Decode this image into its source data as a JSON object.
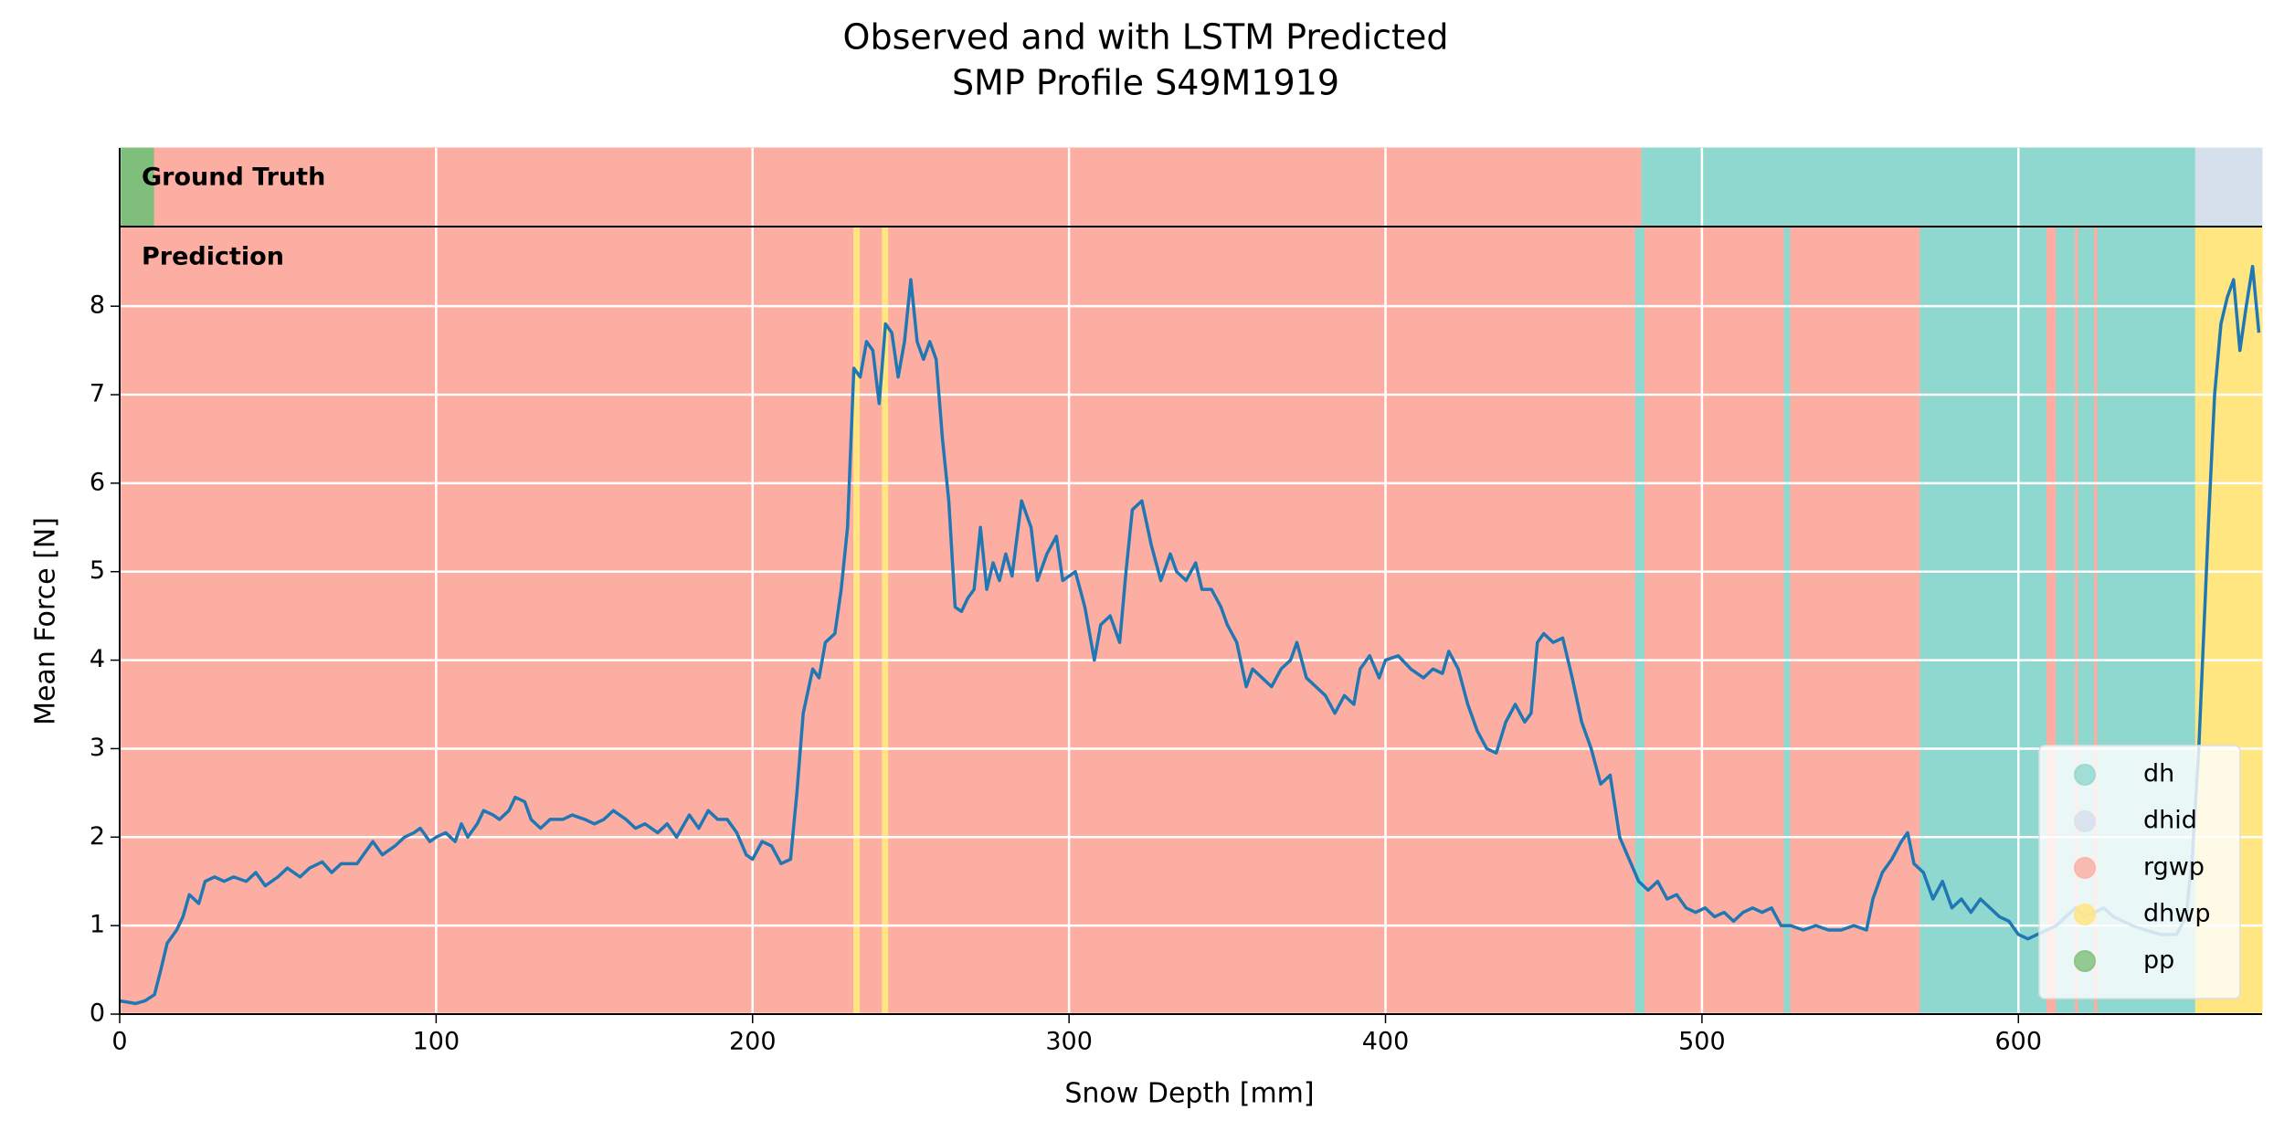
{
  "chart_data": {
    "type": "line",
    "title": [
      "Observed and with LSTM Predicted",
      "SMP Profile S49M1919"
    ],
    "xlabel": "Snow Depth [mm]",
    "ylabel": "Mean Force [N]",
    "xlim": [
      0,
      677
    ],
    "ylim": [
      0,
      8.9
    ],
    "xticks": [
      0,
      100,
      200,
      300,
      400,
      500,
      600
    ],
    "yticks": [
      0,
      1,
      2,
      3,
      4,
      5,
      6,
      7,
      8
    ],
    "grid": true,
    "legend_position": "lower right",
    "classes": [
      {
        "name": "dh",
        "color": "#8fd8cf"
      },
      {
        "name": "dhid",
        "color": "#d6e0ec"
      },
      {
        "name": "rgwp",
        "color": "#fdaea2"
      },
      {
        "name": "dhwp",
        "color": "#ffe680"
      },
      {
        "name": "pp",
        "color": "#7fbf7b"
      }
    ],
    "band_labels": [
      "Ground Truth",
      "Prediction"
    ],
    "ground_truth": [
      {
        "label": "pp",
        "start": 0,
        "end": 11
      },
      {
        "label": "rgwp",
        "start": 11,
        "end": 481
      },
      {
        "label": "dh",
        "start": 481,
        "end": 656
      },
      {
        "label": "dhid",
        "start": 656,
        "end": 677
      }
    ],
    "prediction": [
      {
        "label": "rgwp",
        "start": 0,
        "end": 232
      },
      {
        "label": "dhwp",
        "start": 232,
        "end": 234
      },
      {
        "label": "rgwp",
        "start": 234,
        "end": 241
      },
      {
        "label": "dhwp",
        "start": 241,
        "end": 243
      },
      {
        "label": "rgwp",
        "start": 243,
        "end": 479
      },
      {
        "label": "dh",
        "start": 479,
        "end": 482
      },
      {
        "label": "rgwp",
        "start": 482,
        "end": 526
      },
      {
        "label": "dh",
        "start": 526,
        "end": 528
      },
      {
        "label": "rgwp",
        "start": 528,
        "end": 569
      },
      {
        "label": "dh",
        "start": 569,
        "end": 609
      },
      {
        "label": "rgwp",
        "start": 609,
        "end": 612
      },
      {
        "label": "dh",
        "start": 612,
        "end": 618
      },
      {
        "label": "rgwp",
        "start": 618,
        "end": 619
      },
      {
        "label": "dh",
        "start": 619,
        "end": 624
      },
      {
        "label": "rgwp",
        "start": 624,
        "end": 625
      },
      {
        "label": "dh",
        "start": 625,
        "end": 656
      },
      {
        "label": "dhwp",
        "start": 656,
        "end": 677
      }
    ],
    "series": [
      {
        "name": "Mean Force",
        "color": "#1f77b4",
        "x": [
          0,
          5,
          8,
          11,
          13,
          15,
          18,
          20,
          22,
          25,
          27,
          30,
          33,
          36,
          40,
          43,
          46,
          50,
          53,
          57,
          60,
          64,
          67,
          70,
          75,
          78,
          80,
          83,
          87,
          90,
          93,
          95,
          98,
          100,
          103,
          106,
          108,
          110,
          113,
          115,
          118,
          120,
          123,
          125,
          128,
          130,
          133,
          136,
          140,
          143,
          147,
          150,
          153,
          156,
          160,
          163,
          166,
          170,
          173,
          176,
          180,
          183,
          186,
          189,
          192,
          195,
          198,
          200,
          203,
          206,
          209,
          212,
          214,
          216,
          219,
          221,
          223,
          226,
          228,
          230,
          232,
          234,
          236,
          238,
          240,
          242,
          244,
          246,
          248,
          250,
          252,
          254,
          256,
          258,
          260,
          262,
          264,
          266,
          268,
          270,
          272,
          274,
          276,
          278,
          280,
          282,
          285,
          288,
          290,
          293,
          296,
          298,
          300,
          302,
          305,
          308,
          310,
          313,
          316,
          318,
          320,
          323,
          326,
          329,
          332,
          334,
          337,
          340,
          342,
          345,
          348,
          350,
          353,
          356,
          358,
          361,
          364,
          367,
          370,
          372,
          375,
          378,
          381,
          384,
          387,
          390,
          392,
          395,
          398,
          400,
          404,
          408,
          412,
          415,
          418,
          420,
          423,
          426,
          429,
          432,
          435,
          438,
          441,
          444,
          446,
          448,
          450,
          453,
          456,
          459,
          462,
          465,
          468,
          471,
          474,
          477,
          480,
          483,
          486,
          489,
          492,
          495,
          498,
          501,
          504,
          507,
          510,
          513,
          516,
          519,
          522,
          525,
          528,
          532,
          536,
          540,
          544,
          548,
          552,
          554,
          557,
          560,
          563,
          565,
          567,
          570,
          573,
          576,
          579,
          582,
          585,
          588,
          591,
          594,
          597,
          600,
          603,
          606,
          609,
          612,
          615,
          618,
          621,
          624,
          627,
          630,
          633,
          636,
          640,
          645,
          650,
          653,
          655,
          657,
          660,
          662,
          664,
          666,
          668,
          670,
          672,
          674,
          676
        ],
        "values": [
          0.15,
          0.12,
          0.15,
          0.22,
          0.5,
          0.8,
          0.95,
          1.1,
          1.35,
          1.25,
          1.5,
          1.55,
          1.5,
          1.55,
          1.5,
          1.6,
          1.45,
          1.55,
          1.65,
          1.55,
          1.65,
          1.72,
          1.6,
          1.7,
          1.7,
          1.85,
          1.95,
          1.8,
          1.9,
          2.0,
          2.05,
          2.1,
          1.95,
          2.0,
          2.05,
          1.95,
          2.15,
          2.0,
          2.15,
          2.3,
          2.25,
          2.2,
          2.3,
          2.45,
          2.4,
          2.2,
          2.1,
          2.2,
          2.2,
          2.25,
          2.2,
          2.15,
          2.2,
          2.3,
          2.2,
          2.1,
          2.15,
          2.05,
          2.15,
          2.0,
          2.25,
          2.1,
          2.3,
          2.2,
          2.2,
          2.05,
          1.8,
          1.75,
          1.95,
          1.9,
          1.7,
          1.75,
          2.5,
          3.4,
          3.9,
          3.8,
          4.2,
          4.3,
          4.8,
          5.5,
          7.3,
          7.2,
          7.6,
          7.5,
          6.9,
          7.8,
          7.7,
          7.2,
          7.6,
          8.3,
          7.6,
          7.4,
          7.6,
          7.4,
          6.5,
          5.8,
          4.6,
          4.55,
          4.7,
          4.8,
          5.5,
          4.8,
          5.1,
          4.9,
          5.2,
          4.95,
          5.8,
          5.5,
          4.9,
          5.2,
          5.4,
          4.9,
          4.95,
          5.0,
          4.6,
          4.0,
          4.4,
          4.5,
          4.2,
          5.0,
          5.7,
          5.8,
          5.3,
          4.9,
          5.2,
          5.0,
          4.9,
          5.1,
          4.8,
          4.8,
          4.6,
          4.4,
          4.2,
          3.7,
          3.9,
          3.8,
          3.7,
          3.9,
          4.0,
          4.2,
          3.8,
          3.7,
          3.6,
          3.4,
          3.6,
          3.5,
          3.9,
          4.05,
          3.8,
          4.0,
          4.05,
          3.9,
          3.8,
          3.9,
          3.85,
          4.1,
          3.9,
          3.5,
          3.2,
          3.0,
          2.95,
          3.3,
          3.5,
          3.3,
          3.4,
          4.2,
          4.3,
          4.2,
          4.25,
          3.8,
          3.3,
          3.0,
          2.6,
          2.7,
          2.0,
          1.75,
          1.5,
          1.4,
          1.5,
          1.3,
          1.35,
          1.2,
          1.15,
          1.2,
          1.1,
          1.15,
          1.05,
          1.15,
          1.2,
          1.15,
          1.2,
          1.0,
          1.0,
          0.95,
          1.0,
          0.95,
          0.95,
          1.0,
          0.95,
          1.3,
          1.6,
          1.75,
          1.95,
          2.05,
          1.7,
          1.6,
          1.3,
          1.5,
          1.2,
          1.3,
          1.15,
          1.3,
          1.2,
          1.1,
          1.05,
          0.9,
          0.85,
          0.9,
          0.95,
          1.0,
          1.1,
          1.2,
          1.1,
          1.15,
          1.2,
          1.1,
          1.05,
          1.0,
          0.95,
          0.9,
          0.9,
          1.1,
          1.8,
          3.0,
          5.5,
          7.0,
          7.8,
          8.1,
          8.3,
          7.5,
          8.0,
          8.45,
          7.7
        ]
      }
    ]
  }
}
